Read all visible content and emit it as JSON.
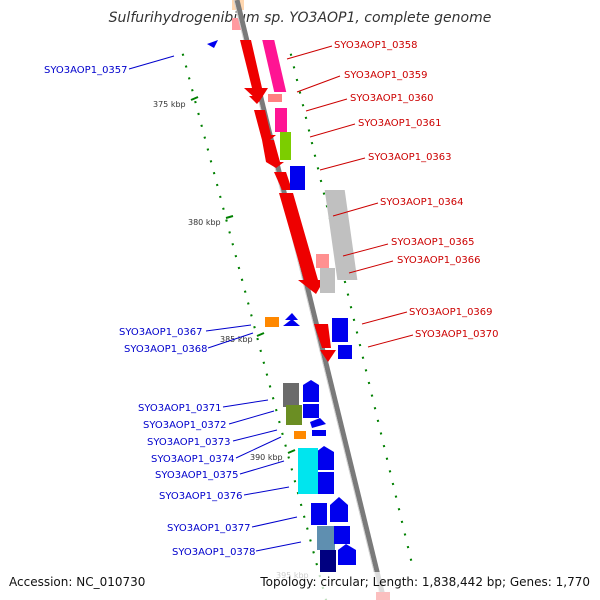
{
  "title": "Sulfurihydrogenibium sp. YO3AOP1, complete genome",
  "footer": {
    "accession": "Accession: NC_010730",
    "topology": "Topology: circular; Length: 1,838,442 bp; Genes: 1,770"
  },
  "scale_labels": [
    "375 kbp",
    "380 kbp",
    "385 kbp",
    "390 kbp"
  ],
  "genes_top": [
    "SYO3AOP1_0358",
    "SYO3AOP1_0359",
    "SYO3AOP1_0360",
    "SYO3AOP1_0361",
    "SYO3AOP1_0363",
    "SYO3AOP1_0364",
    "SYO3AOP1_0365",
    "SYO3AOP1_0366",
    "SYO3AOP1_0369",
    "SYO3AOP1_0370"
  ],
  "genes_bottom": [
    "SYO3AOP1_0357",
    "SYO3AOP1_0367",
    "SYO3AOP1_0368",
    "SYO3AOP1_0371",
    "SYO3AOP1_0372",
    "SYO3AOP1_0373",
    "SYO3AOP1_0374",
    "SYO3AOP1_0375",
    "SYO3AOP1_0376",
    "SYO3AOP1_0377",
    "SYO3AOP1_0378"
  ],
  "colors": {
    "top_strand_label": "#cc0000",
    "bottom_strand_label": "#0000cc",
    "backbone": "#7a7a7a",
    "tick": "#008000"
  }
}
